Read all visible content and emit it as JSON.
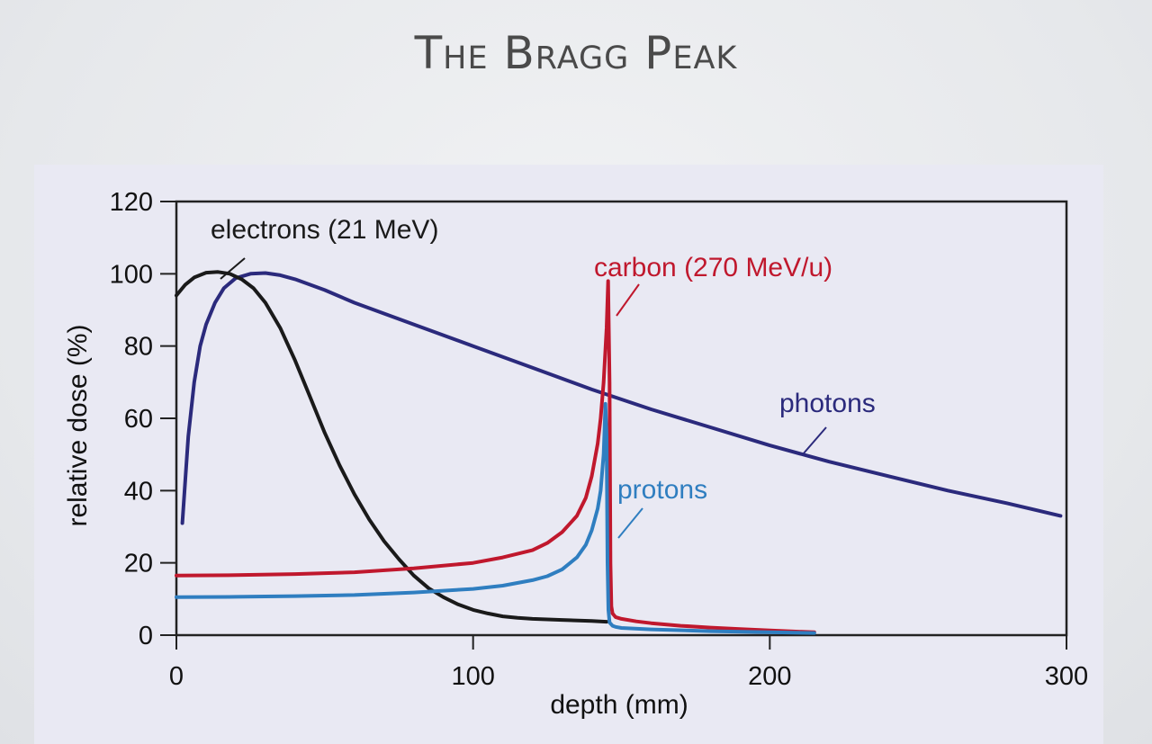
{
  "slide": {
    "title": "The Bragg Peak"
  },
  "colors": {
    "electrons": "#1a1a1a",
    "photons": "#2b2a7c",
    "carbon": "#c0182d",
    "protons": "#2f7ec0",
    "panel": "#e9e9f3"
  },
  "chart_data": {
    "type": "line",
    "title": "",
    "xlabel": "depth (mm)",
    "ylabel": "relative dose (%)",
    "xlim": [
      0,
      300
    ],
    "ylim": [
      0,
      120
    ],
    "xticks": [
      0,
      100,
      200,
      300
    ],
    "yticks": [
      0,
      20,
      40,
      60,
      80,
      100,
      120
    ],
    "grid": false,
    "series": [
      {
        "key": "electrons",
        "name": "electrons (21 MeV)",
        "x": [
          0,
          3,
          6,
          10,
          14,
          18,
          22,
          26,
          30,
          35,
          40,
          45,
          50,
          55,
          60,
          65,
          70,
          75,
          80,
          85,
          90,
          95,
          100,
          105,
          110,
          115,
          120,
          130,
          140,
          145
        ],
        "y": [
          94,
          97,
          99,
          100.3,
          100.5,
          100,
          98.5,
          96,
          92,
          85,
          76,
          66,
          56,
          47,
          39,
          32,
          26,
          21,
          16.5,
          13,
          10.5,
          8.5,
          7,
          6,
          5.2,
          4.8,
          4.5,
          4.2,
          3.9,
          3.7
        ]
      },
      {
        "key": "photons",
        "name": "photons",
        "x": [
          2,
          4,
          6,
          8,
          10,
          13,
          16,
          20,
          25,
          30,
          35,
          40,
          50,
          60,
          80,
          100,
          120,
          140,
          160,
          180,
          200,
          220,
          240,
          260,
          280,
          298
        ],
        "y": [
          31,
          55,
          70,
          80,
          86,
          92,
          96,
          98.8,
          100,
          100.2,
          99.6,
          98.5,
          95.5,
          92,
          86,
          80,
          74,
          68,
          62.5,
          57.5,
          52.5,
          48,
          44,
          40,
          36.5,
          33
        ]
      },
      {
        "key": "carbon",
        "name": "carbon (270 MeV/u)",
        "x": [
          0,
          20,
          40,
          60,
          80,
          100,
          110,
          120,
          125,
          130,
          135,
          138,
          140,
          142,
          143,
          144,
          145,
          145.5,
          146,
          146.3,
          146.6,
          147,
          148,
          150,
          155,
          160,
          170,
          180,
          190,
          200,
          215
        ],
        "y": [
          16.5,
          16.6,
          16.9,
          17.4,
          18.5,
          20,
          21.5,
          23.5,
          25.5,
          28.5,
          33,
          38,
          44,
          53,
          60,
          70,
          85,
          98,
          70,
          20,
          8,
          6,
          5,
          4.5,
          3.8,
          3.3,
          2.6,
          2.1,
          1.7,
          1.3,
          0.8
        ]
      },
      {
        "key": "protons",
        "name": "protons",
        "x": [
          0,
          20,
          40,
          60,
          80,
          100,
          110,
          120,
          125,
          130,
          135,
          138,
          140,
          142,
          143,
          144,
          144.6,
          145,
          145.3,
          145.6,
          146,
          147,
          148,
          150,
          160,
          180,
          200,
          215
        ],
        "y": [
          10.5,
          10.6,
          10.8,
          11.1,
          11.8,
          12.8,
          13.7,
          15.2,
          16.3,
          18.2,
          21.5,
          25,
          29,
          35,
          40,
          50,
          64,
          55,
          20,
          7,
          3.5,
          2.6,
          2.3,
          2,
          1.6,
          1.1,
          0.8,
          0.6
        ]
      }
    ],
    "annotations": [
      {
        "series": "electrons",
        "text": "electrons (21 MeV)"
      },
      {
        "series": "carbon",
        "text": "carbon (270 MeV/u)"
      },
      {
        "series": "photons",
        "text": "photons"
      },
      {
        "series": "protons",
        "text": "protons"
      }
    ]
  }
}
